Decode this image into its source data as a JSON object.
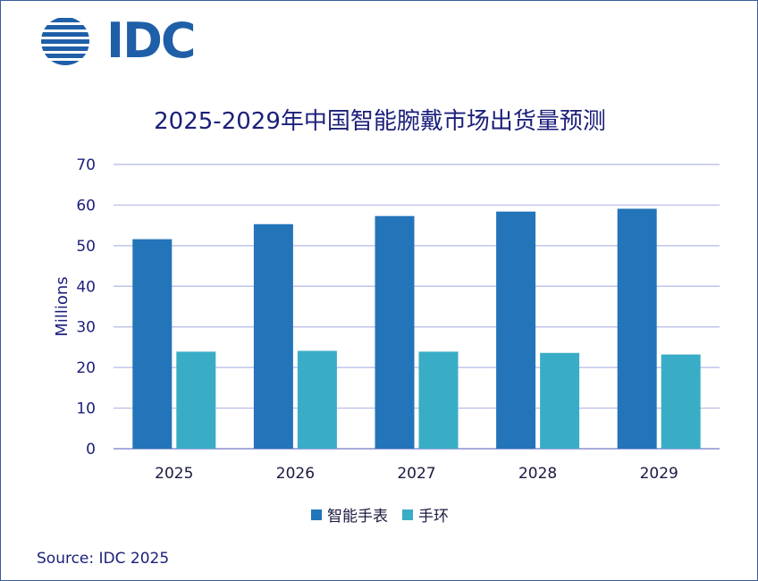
{
  "logo": {
    "text": "IDC",
    "color": "#1f5fa8"
  },
  "source": "Source: IDC 2025",
  "chart_data": {
    "type": "bar",
    "title": "2025-2029年中国智能腕戴市场出货量预测",
    "ylabel": "Millions",
    "xlabel": "",
    "ylim": [
      0,
      70
    ],
    "yticks": [
      0,
      10,
      20,
      30,
      40,
      50,
      60,
      70
    ],
    "grid": true,
    "legend_position": "bottom",
    "categories": [
      "2025",
      "2026",
      "2027",
      "2028",
      "2029"
    ],
    "series": [
      {
        "name": "智能手表",
        "color": "#2474b9",
        "values": [
          51.6,
          55.3,
          57.3,
          58.4,
          59.1
        ]
      },
      {
        "name": "手环",
        "color": "#3aadc6",
        "values": [
          23.9,
          24.1,
          23.9,
          23.6,
          23.2
        ]
      }
    ]
  }
}
